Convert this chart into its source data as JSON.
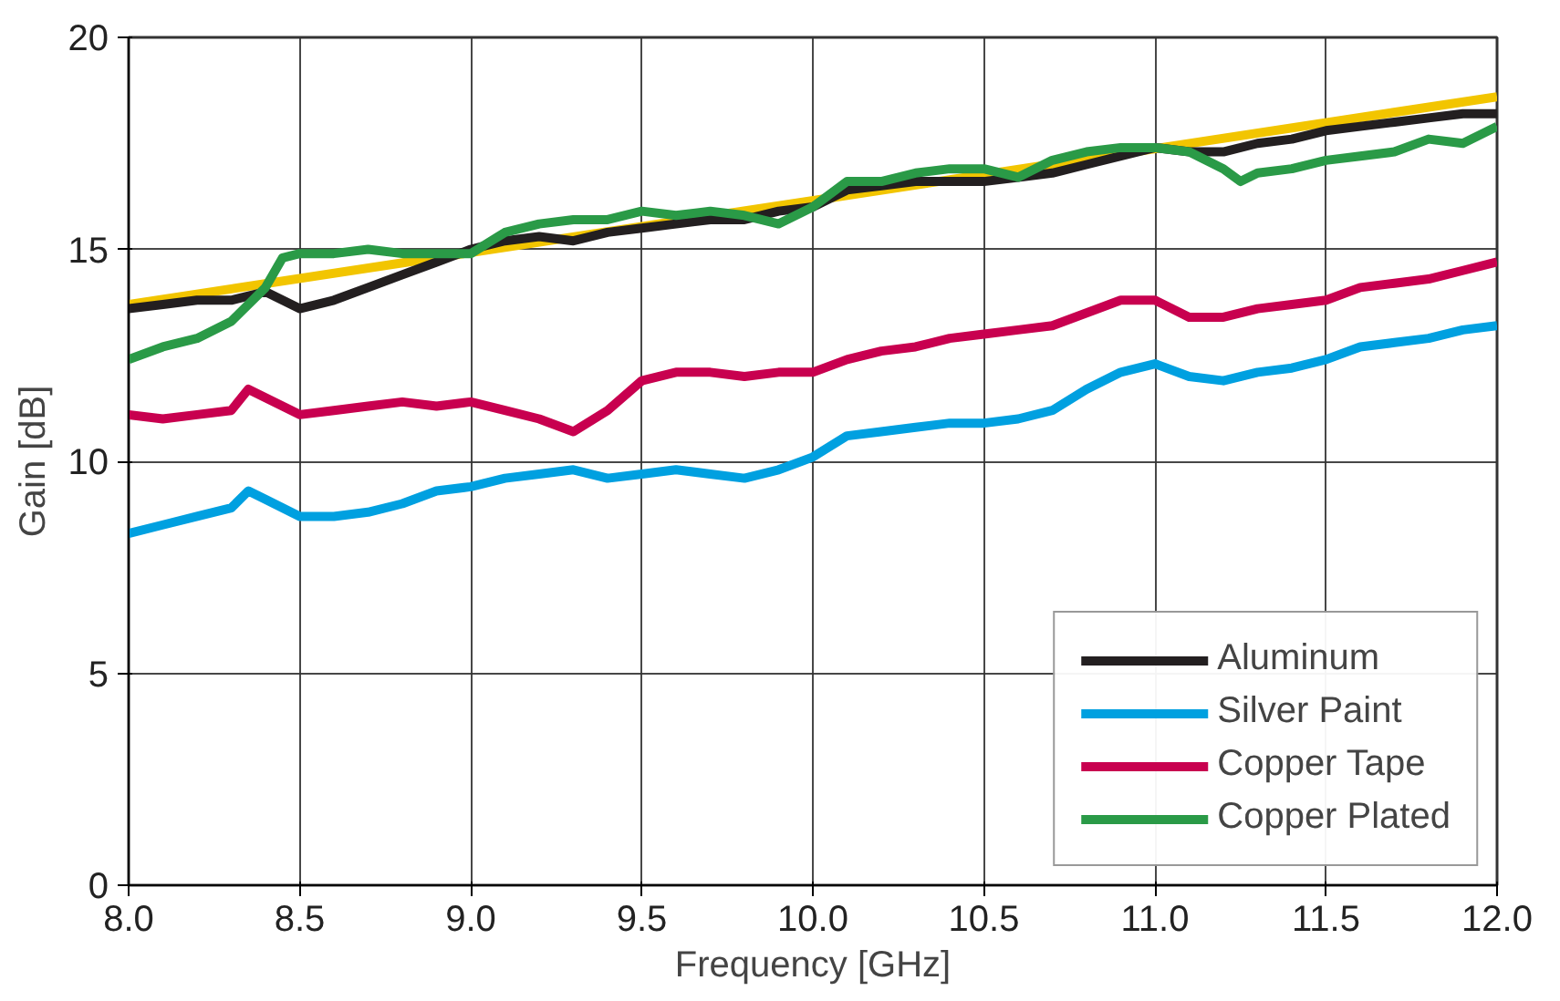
{
  "chart_data": {
    "type": "line",
    "xlabel": "Frequency [GHz]",
    "ylabel": "Gain [dB]",
    "xlim": [
      8.0,
      12.0
    ],
    "xticks": [
      {
        "value": 8,
        "label": "8.0"
      },
      {
        "value": 8.5,
        "label": "8.5"
      },
      {
        "value": 9,
        "label": "9.0"
      },
      {
        "value": 9.5,
        "label": "9.5"
      },
      {
        "value": 10,
        "label": "10.0"
      },
      {
        "value": 10.5,
        "label": "10.5"
      },
      {
        "value": 11,
        "label": "11.0"
      },
      {
        "value": 11.5,
        "label": "11.5"
      },
      {
        "value": 12,
        "label": "12.0"
      }
    ],
    "ylim": [
      0,
      20
    ],
    "yticks": [
      0,
      5,
      10,
      15,
      20
    ],
    "grid": true,
    "legend": "bottom right",
    "marker": "none",
    "line_style": "solid",
    "series": [
      {
        "color": "#f2c500",
        "x": [
          8.0,
          12.0
        ],
        "values": [
          13.7,
          18.6
        ]
      },
      {
        "name": "Aluminum",
        "color": "#231f20",
        "x": [
          8.0,
          8.1,
          8.2,
          8.3,
          8.4,
          8.5,
          8.6,
          8.7,
          8.8,
          8.9,
          9.0,
          9.1,
          9.2,
          9.3,
          9.4,
          9.5,
          9.6,
          9.7,
          9.8,
          9.9,
          10.0,
          10.1,
          10.2,
          10.3,
          10.4,
          10.5,
          10.6,
          10.7,
          10.8,
          10.9,
          11.0,
          11.1,
          11.2,
          11.3,
          11.4,
          11.5,
          11.6,
          11.7,
          11.8,
          11.9,
          12.0
        ],
        "values": [
          13.6,
          13.7,
          13.8,
          13.8,
          14.0,
          13.6,
          13.8,
          14.1,
          14.4,
          14.7,
          15.0,
          15.2,
          15.3,
          15.2,
          15.4,
          15.5,
          15.6,
          15.7,
          15.7,
          15.9,
          16.0,
          16.4,
          16.5,
          16.6,
          16.6,
          16.6,
          16.7,
          16.8,
          17.0,
          17.2,
          17.4,
          17.3,
          17.3,
          17.5,
          17.6,
          17.8,
          17.9,
          18.0,
          18.1,
          18.2,
          18.2
        ]
      },
      {
        "name": "Silver Paint",
        "color": "#00a0e0",
        "x": [
          8.0,
          8.1,
          8.2,
          8.3,
          8.35,
          8.4,
          8.5,
          8.6,
          8.7,
          8.8,
          8.9,
          9.0,
          9.1,
          9.2,
          9.3,
          9.4,
          9.5,
          9.6,
          9.7,
          9.8,
          9.9,
          10.0,
          10.1,
          10.2,
          10.3,
          10.4,
          10.5,
          10.6,
          10.7,
          10.8,
          10.9,
          11.0,
          11.1,
          11.2,
          11.3,
          11.4,
          11.5,
          11.6,
          11.7,
          11.8,
          11.9,
          12.0
        ],
        "values": [
          8.3,
          8.5,
          8.7,
          8.9,
          9.3,
          9.1,
          8.7,
          8.7,
          8.8,
          9.0,
          9.3,
          9.4,
          9.6,
          9.7,
          9.8,
          9.6,
          9.7,
          9.8,
          9.7,
          9.6,
          9.8,
          10.1,
          10.6,
          10.7,
          10.8,
          10.9,
          10.9,
          11.0,
          11.2,
          11.7,
          12.1,
          12.3,
          12.0,
          11.9,
          12.1,
          12.2,
          12.4,
          12.7,
          12.8,
          12.9,
          13.1,
          13.2
        ]
      },
      {
        "name": "Copper Tape",
        "color": "#c8004f",
        "x": [
          8.0,
          8.1,
          8.2,
          8.3,
          8.35,
          8.4,
          8.5,
          8.6,
          8.7,
          8.8,
          8.9,
          9.0,
          9.1,
          9.2,
          9.3,
          9.4,
          9.5,
          9.6,
          9.7,
          9.8,
          9.9,
          10.0,
          10.1,
          10.2,
          10.3,
          10.4,
          10.5,
          10.6,
          10.7,
          10.8,
          10.9,
          11.0,
          11.1,
          11.2,
          11.3,
          11.4,
          11.5,
          11.6,
          11.7,
          11.8,
          11.9,
          12.0
        ],
        "values": [
          11.1,
          11.0,
          11.1,
          11.2,
          11.7,
          11.5,
          11.1,
          11.2,
          11.3,
          11.4,
          11.3,
          11.4,
          11.2,
          11.0,
          10.7,
          11.2,
          11.9,
          12.1,
          12.1,
          12.0,
          12.1,
          12.1,
          12.4,
          12.6,
          12.7,
          12.9,
          13.0,
          13.1,
          13.2,
          13.5,
          13.8,
          13.8,
          13.4,
          13.4,
          13.6,
          13.7,
          13.8,
          14.1,
          14.2,
          14.3,
          14.5,
          14.7
        ]
      },
      {
        "name": "Copper Plated",
        "color": "#2a9a47",
        "x": [
          8.0,
          8.1,
          8.2,
          8.3,
          8.4,
          8.45,
          8.5,
          8.6,
          8.7,
          8.8,
          8.9,
          9.0,
          9.1,
          9.2,
          9.3,
          9.4,
          9.5,
          9.6,
          9.7,
          9.8,
          9.9,
          10.0,
          10.1,
          10.2,
          10.3,
          10.4,
          10.5,
          10.6,
          10.7,
          10.8,
          10.9,
          11.0,
          11.1,
          11.2,
          11.25,
          11.3,
          11.4,
          11.5,
          11.6,
          11.7,
          11.8,
          11.9,
          12.0
        ],
        "values": [
          12.4,
          12.7,
          12.9,
          13.3,
          14.1,
          14.8,
          14.9,
          14.9,
          15.0,
          14.9,
          14.9,
          14.9,
          15.4,
          15.6,
          15.7,
          15.7,
          15.9,
          15.8,
          15.9,
          15.8,
          15.6,
          16.0,
          16.6,
          16.6,
          16.8,
          16.9,
          16.9,
          16.7,
          17.1,
          17.3,
          17.4,
          17.4,
          17.3,
          16.9,
          16.6,
          16.8,
          16.9,
          17.1,
          17.2,
          17.3,
          17.6,
          17.5,
          17.9
        ]
      }
    ]
  }
}
